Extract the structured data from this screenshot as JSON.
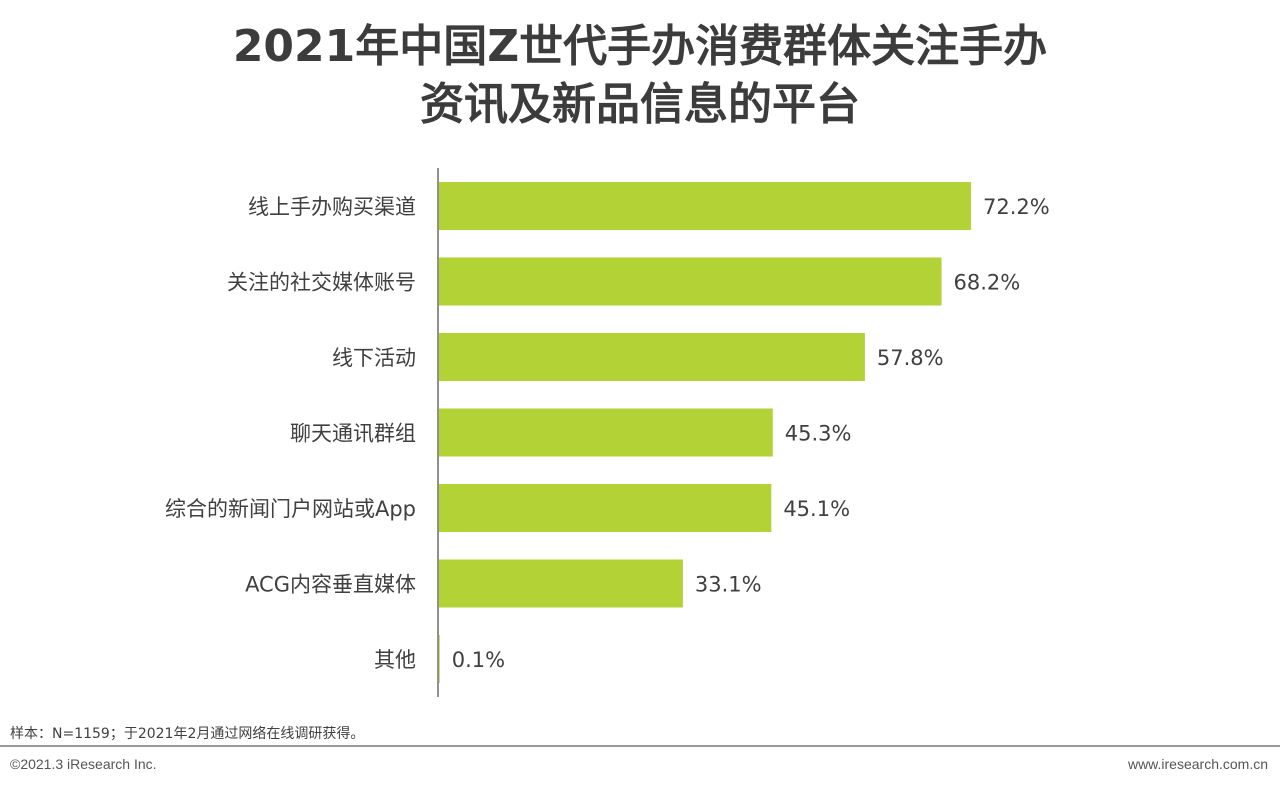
{
  "title_line1": "2021年中国Z世代手办消费群体关注手办",
  "title_line2": "资讯及新品信息的平台",
  "footnote": "样本：N=1159；于2021年2月通过网络在线调研获得。",
  "copyright": "©2021.3 iResearch Inc.",
  "website": "www.iresearch.com.cn",
  "colors": {
    "bar": "#b2d235",
    "axis": "#6b6b6b"
  },
  "chart_data": {
    "type": "bar",
    "orientation": "horizontal",
    "categories": [
      "线上手办购买渠道",
      "关注的社交媒体账号",
      "线下活动",
      "聊天通讯群组",
      "综合的新闻门户网站或App",
      "ACG内容垂直媒体",
      "其他"
    ],
    "values": [
      72.2,
      68.2,
      57.8,
      45.3,
      45.1,
      33.1,
      0.1
    ],
    "value_labels": [
      "72.2%",
      "68.2%",
      "57.8%",
      "45.3%",
      "45.1%",
      "33.1%",
      "0.1%"
    ],
    "xlim": [
      0,
      100
    ],
    "grid": false,
    "legend": "none"
  }
}
